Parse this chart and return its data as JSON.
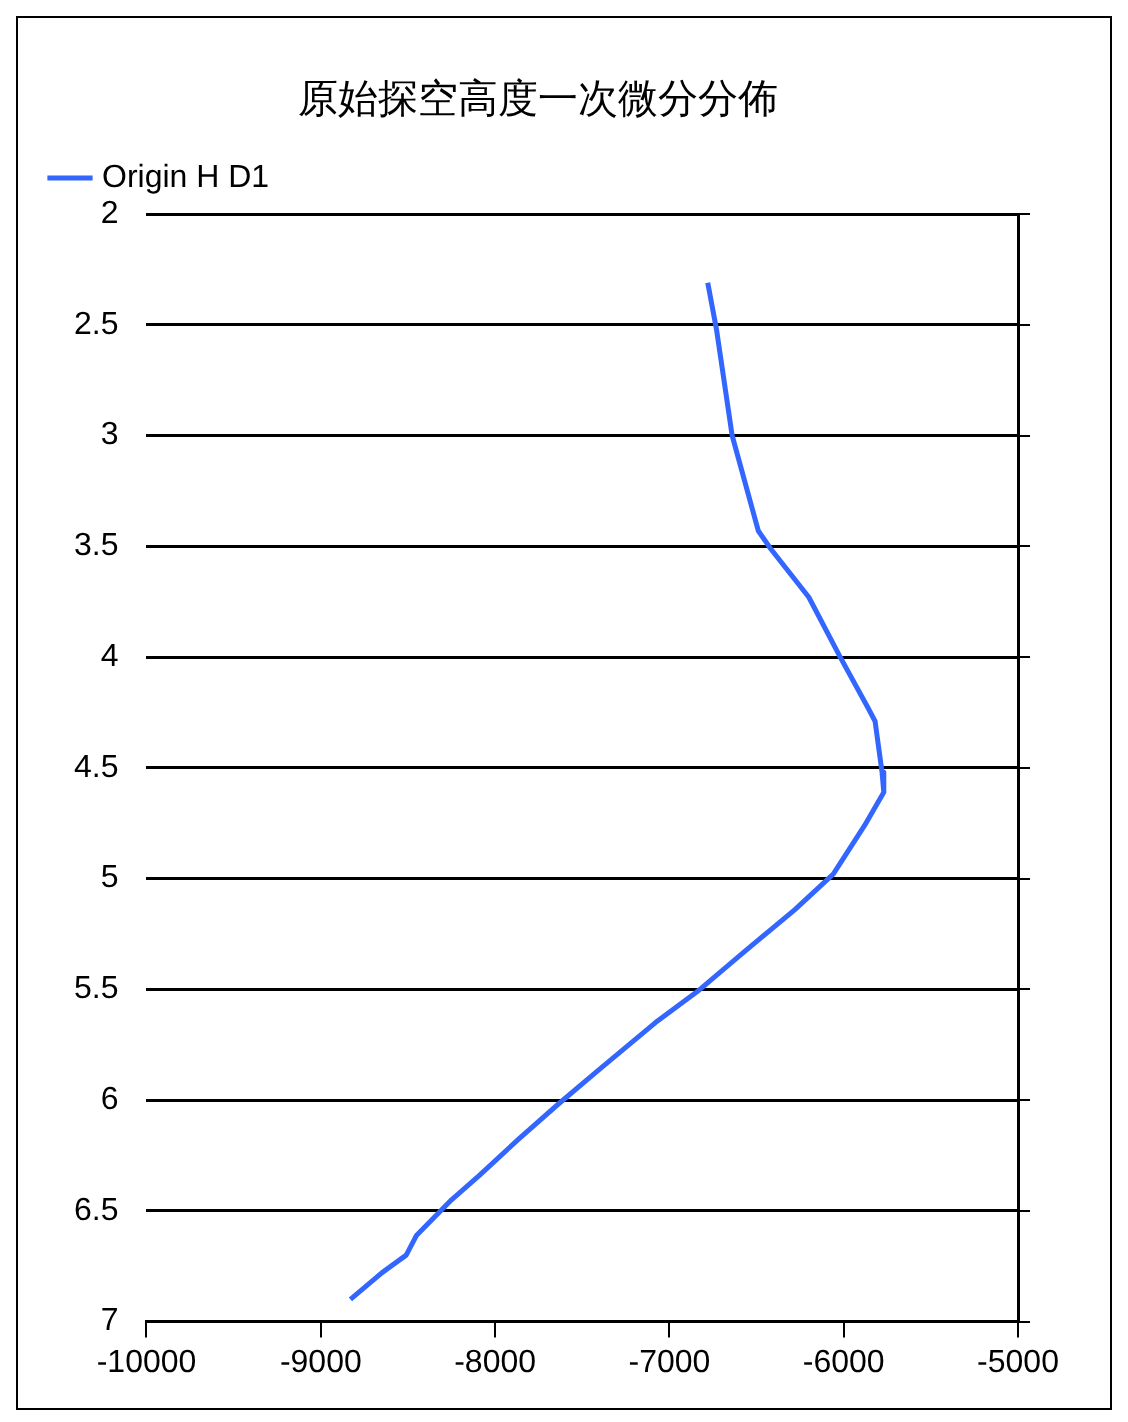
{
  "chart_data": {
    "type": "line",
    "title": "原始探空高度一次微分分佈",
    "series": [
      {
        "name": "Origin H D1",
        "color": "#3366ff",
        "x": [
          -6780,
          -6730,
          -6640,
          -6490,
          -6420,
          -6200,
          -6020,
          -5860,
          -5820,
          -5780,
          -5770,
          -5880,
          -6060,
          -6280,
          -6600,
          -6840,
          -7080,
          -7400,
          -7640,
          -7870,
          -8090,
          -8250,
          -8450,
          -8510,
          -8650,
          -8830
        ],
        "values": [
          2.31,
          2.52,
          3.0,
          3.43,
          3.51,
          3.73,
          4.0,
          4.23,
          4.29,
          4.52,
          4.61,
          4.76,
          4.98,
          5.14,
          5.35,
          5.51,
          5.65,
          5.86,
          6.02,
          6.18,
          6.34,
          6.45,
          6.61,
          6.7,
          6.78,
          6.9
        ]
      }
    ],
    "xlim": [
      -10000,
      -5000
    ],
    "xticks": [
      -10000,
      -9000,
      -8000,
      -7000,
      -6000,
      -5000
    ],
    "ylim": [
      7,
      2
    ],
    "yticks": [
      2,
      2.5,
      3,
      3.5,
      4,
      4.5,
      5,
      5.5,
      6,
      6.5,
      7
    ],
    "grid": "y",
    "legend": "top left",
    "marker": "none",
    "line_style": "solid"
  }
}
